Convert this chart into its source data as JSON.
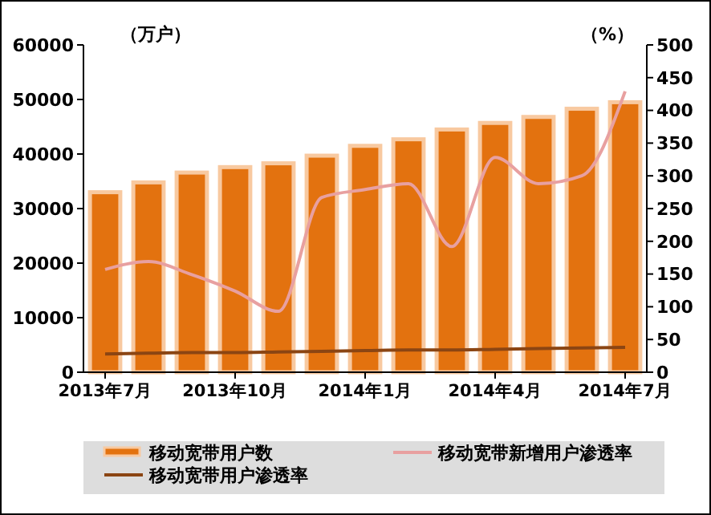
{
  "chart_data": {
    "type": "bar",
    "ylabel": "（万户）",
    "y2label": "（%）",
    "categories": [
      "2013年7月",
      null,
      null,
      "2013年10月",
      null,
      null,
      "2014年1月",
      null,
      null,
      "2014年4月",
      null,
      null,
      "2014年7月"
    ],
    "series": [
      {
        "name": "移动宽带用户数",
        "color": "#e3720f",
        "values": [
          33000,
          34800,
          36600,
          37600,
          38300,
          39700,
          41500,
          42700,
          44500,
          45700,
          46800,
          48300,
          49500
        ]
      },
      {
        "name": "移动宽带新增用户渗透率",
        "type": "line",
        "axis": "y2",
        "color": "#e8a0a0",
        "values": [
          157,
          169,
          149,
          124,
          93,
          267,
          279,
          288,
          192,
          328,
          288,
          300,
          429
        ]
      },
      {
        "name": "移动宽带用户渗透率",
        "type": "line",
        "axis": "y2",
        "color": "#8b4513",
        "values": [
          28,
          29,
          30,
          30,
          31,
          32,
          33,
          34,
          34,
          35,
          36,
          37,
          38
        ]
      }
    ],
    "ylim": [
      0,
      60000
    ],
    "yticks": [
      0,
      10000,
      20000,
      30000,
      40000,
      50000,
      60000
    ],
    "y2lim": [
      0,
      500
    ],
    "y2ticks": [
      0,
      50,
      100,
      150,
      200,
      250,
      300,
      350,
      400,
      450,
      500
    ],
    "grid": false,
    "legend": "bottom",
    "marker": "none",
    "line_style": "solid"
  }
}
